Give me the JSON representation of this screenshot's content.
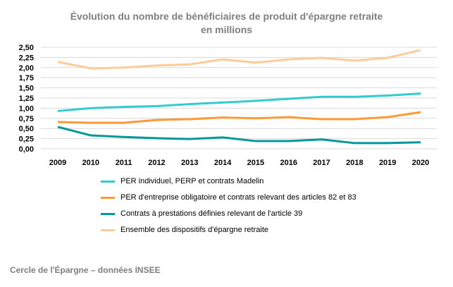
{
  "chart_data": {
    "type": "line",
    "title": "Évolution du nombre de bénéficiaires de produit d'épargne retraite",
    "subtitle": "en millions",
    "x": [
      "2009",
      "2010",
      "2011",
      "2012",
      "2013",
      "2014",
      "2015",
      "2016",
      "2017",
      "2018",
      "2019",
      "2020"
    ],
    "ylim": [
      0,
      2.5
    ],
    "yticks": [
      "0,00",
      "0,25",
      "0,50",
      "0,75",
      "1,00",
      "1,25",
      "1,50",
      "1,75",
      "2,00",
      "2,25",
      "2,50"
    ],
    "grid": true,
    "legend_position": "bottom",
    "series": [
      {
        "name": "PER individuel, PERP et contrats Madelin",
        "color": "#33cccc",
        "values": [
          0.93,
          1.0,
          1.03,
          1.05,
          1.1,
          1.14,
          1.18,
          1.23,
          1.28,
          1.28,
          1.31,
          1.36
        ]
      },
      {
        "name": "PER d'entreprise obligatoire et contrats relevant des articles 82 et 83",
        "color": "#ff9933",
        "values": [
          0.66,
          0.64,
          0.64,
          0.71,
          0.73,
          0.77,
          0.75,
          0.78,
          0.73,
          0.73,
          0.78,
          0.9
        ]
      },
      {
        "name": "Contrats à prestations définies relevant de l'article 39",
        "color": "#009999",
        "values": [
          0.54,
          0.33,
          0.29,
          0.26,
          0.24,
          0.28,
          0.19,
          0.19,
          0.23,
          0.14,
          0.14,
          0.16
        ]
      },
      {
        "name": "Ensemble des dispositifs d'épargne retraite",
        "color": "#ffcc99",
        "values": [
          2.14,
          1.98,
          2.0,
          2.05,
          2.08,
          2.2,
          2.12,
          2.2,
          2.24,
          2.17,
          2.24,
          2.43
        ]
      }
    ]
  },
  "footer": "Cercle de l'Épargne – données INSEE"
}
